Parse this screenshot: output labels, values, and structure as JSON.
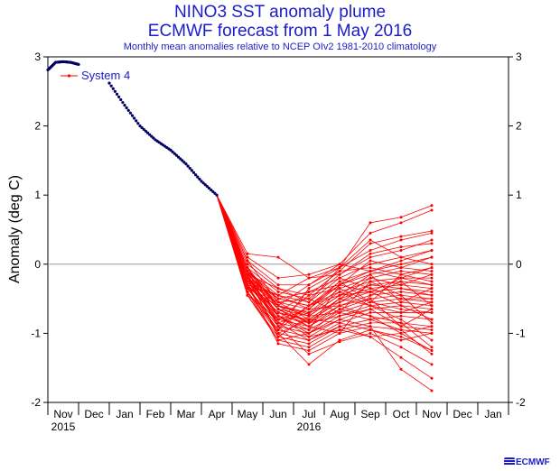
{
  "title": "NINO3 SST anomaly plume",
  "subtitle_line": "ECMWF forecast from 1 May 2016",
  "note": "Monthly mean anomalies relative to NCEP OIv2 1981-2010 climatology",
  "legend_label": "System 4",
  "logo_text": "ECMWF",
  "colors": {
    "title": "#1b1bcc",
    "observed": "#000066",
    "forecast": "#ff0000",
    "zero_line": "#999999"
  },
  "chart_data": {
    "type": "line",
    "title": "NINO3 SST anomaly plume",
    "ylabel": "Anomaly (deg C)",
    "ylim": [
      -2,
      3
    ],
    "yticks": [
      -2,
      -1,
      0,
      1,
      2,
      3
    ],
    "x_months": [
      "Nov",
      "Dec",
      "Jan",
      "Feb",
      "Mar",
      "Apr",
      "May",
      "Jun",
      "Jul",
      "Aug",
      "Sep",
      "Oct",
      "Nov",
      "Dec",
      "Jan"
    ],
    "x_years": [
      {
        "label": "2015",
        "month_index": 0
      },
      {
        "label": "2016",
        "month_index": 8
      }
    ],
    "grid": false,
    "legend_position": "top-left",
    "observed": {
      "x": [
        -0.5,
        -0.25,
        0,
        0.25,
        0.5,
        1.5,
        2,
        2.5,
        3,
        3.5,
        4,
        4.5,
        5
      ],
      "y": [
        2.81,
        2.92,
        2.93,
        2.92,
        2.89,
        2.62,
        2.3,
        2.0,
        1.8,
        1.65,
        1.45,
        1.2,
        1.0
      ]
    },
    "forecast": {
      "start": {
        "x": 5,
        "y": 1.0
      },
      "x": [
        6,
        7,
        8,
        9,
        10,
        11,
        12
      ],
      "members": [
        [
          0.15,
          0.1,
          -0.2,
          -0.05,
          0.6,
          0.68,
          0.85
        ],
        [
          0.1,
          -0.2,
          -0.15,
          0.0,
          0.45,
          0.6,
          0.78
        ],
        [
          0.05,
          -0.3,
          -0.3,
          -0.05,
          0.2,
          0.35,
          0.45
        ],
        [
          0.0,
          -0.35,
          -0.45,
          -0.1,
          0.3,
          0.4,
          0.48
        ],
        [
          -0.05,
          -0.4,
          -0.5,
          -0.15,
          0.1,
          0.2,
          0.35
        ],
        [
          -0.1,
          -0.45,
          -0.55,
          -0.2,
          0.0,
          0.1,
          0.2
        ],
        [
          -0.1,
          -0.5,
          -0.6,
          -0.25,
          -0.1,
          0.0,
          0.1
        ],
        [
          -0.15,
          -0.55,
          -0.65,
          -0.3,
          -0.15,
          -0.05,
          -0.1
        ],
        [
          -0.15,
          -0.6,
          -0.7,
          -0.35,
          -0.2,
          -0.1,
          -0.15
        ],
        [
          -0.2,
          -0.6,
          -0.72,
          -0.4,
          -0.25,
          -0.2,
          -0.2
        ],
        [
          -0.2,
          -0.65,
          -0.75,
          -0.45,
          -0.3,
          -0.25,
          -0.3
        ],
        [
          -0.25,
          -0.7,
          -0.8,
          -0.5,
          -0.35,
          -0.3,
          -0.35
        ],
        [
          -0.25,
          -0.7,
          -0.82,
          -0.55,
          -0.4,
          -0.35,
          -0.4
        ],
        [
          -0.3,
          -0.75,
          -0.85,
          -0.6,
          -0.45,
          -0.4,
          -0.45
        ],
        [
          -0.3,
          -0.8,
          -0.9,
          -0.65,
          -0.5,
          -0.45,
          -0.5
        ],
        [
          -0.35,
          -0.85,
          -0.95,
          -0.7,
          -0.55,
          -0.5,
          -0.55
        ],
        [
          -0.35,
          -0.9,
          -1.0,
          -0.75,
          -0.6,
          -0.55,
          -0.6
        ],
        [
          -0.4,
          -0.95,
          -1.05,
          -0.8,
          -0.65,
          -0.6,
          -0.65
        ],
        [
          -0.4,
          -1.0,
          -1.1,
          -0.85,
          -0.7,
          -0.7,
          -0.7
        ],
        [
          -0.45,
          -1.05,
          -1.15,
          -0.9,
          -0.8,
          -0.75,
          -0.8
        ],
        [
          -0.45,
          -1.1,
          -1.2,
          -0.95,
          -0.85,
          -0.85,
          -0.9
        ],
        [
          -0.3,
          -1.15,
          -1.25,
          -1.0,
          -0.9,
          -0.95,
          -1.0
        ],
        [
          -0.2,
          -1.0,
          -1.45,
          -1.1,
          -0.95,
          -1.05,
          -1.25
        ],
        [
          -0.15,
          -0.9,
          -1.3,
          -1.12,
          -1.0,
          -1.2,
          -1.45
        ],
        [
          -0.25,
          -0.85,
          -1.1,
          -0.9,
          -1.05,
          -1.35,
          -1.65
        ],
        [
          -0.1,
          -0.75,
          -1.0,
          -0.8,
          -0.9,
          -1.52,
          -1.83
        ],
        [
          -0.05,
          -0.65,
          -0.9,
          -0.6,
          -0.75,
          -1.0,
          -1.25
        ],
        [
          0.05,
          -0.55,
          -0.8,
          -0.5,
          -0.6,
          -0.8,
          -1.1
        ],
        [
          -0.2,
          -0.5,
          -0.6,
          -0.3,
          -0.4,
          -0.6,
          -0.8
        ],
        [
          -0.3,
          -0.7,
          -0.4,
          -0.2,
          -0.35,
          -0.5,
          -0.5
        ],
        [
          -0.35,
          -0.6,
          -0.3,
          0.0,
          -0.1,
          -0.2,
          -0.3
        ],
        [
          -0.4,
          -0.95,
          -0.35,
          -0.1,
          -0.05,
          -0.15,
          -0.05
        ],
        [
          -0.45,
          -0.8,
          -0.65,
          -0.6,
          -0.5,
          -0.9,
          -0.95
        ],
        [
          -0.15,
          -1.05,
          -0.75,
          -0.7,
          -0.8,
          -0.95,
          -1.3
        ],
        [
          -0.25,
          -0.45,
          -0.2,
          -0.15,
          0.15,
          0.25,
          0.3
        ],
        [
          -0.2,
          -0.65,
          -0.85,
          -0.5,
          -0.2,
          -0.3,
          -0.15
        ],
        [
          -0.1,
          -0.9,
          -0.6,
          -0.4,
          -0.6,
          -0.7,
          -0.55
        ],
        [
          -0.3,
          -1.0,
          -0.8,
          -0.85,
          -0.95,
          -1.1,
          -1.0
        ],
        [
          -0.05,
          -0.75,
          -0.95,
          -0.3,
          0.05,
          -0.05,
          0.1
        ],
        [
          -0.35,
          -0.55,
          -0.5,
          -0.7,
          -0.25,
          -0.45,
          -0.85
        ],
        [
          -0.15,
          -0.35,
          -0.55,
          -0.05,
          0.35,
          0.1,
          0.0
        ],
        [
          -0.2,
          -0.8,
          -0.45,
          -0.35,
          -0.55,
          -0.65,
          -0.7
        ],
        [
          -0.1,
          -0.6,
          -0.75,
          -0.45,
          -0.15,
          -0.55,
          -0.35
        ],
        [
          -0.4,
          -1.1,
          -1.0,
          -0.65,
          -0.75,
          -0.85,
          -1.2
        ],
        [
          -0.25,
          -0.7,
          -0.9,
          -1.0,
          -0.45,
          -0.25,
          -0.6
        ],
        [
          -0.3,
          -0.45,
          -0.65,
          -0.25,
          -0.55,
          -0.15,
          -0.25
        ],
        [
          -0.15,
          -0.85,
          -0.7,
          -0.55,
          -0.3,
          -0.35,
          -0.45
        ],
        [
          -0.05,
          -0.6,
          -0.85,
          -0.75,
          -0.65,
          -0.9,
          -0.65
        ],
        [
          -0.35,
          -0.95,
          -0.6,
          -0.45,
          -0.4,
          -0.2,
          -0.05
        ],
        [
          -0.2,
          -0.75,
          -1.05,
          -0.95,
          -1.05,
          -1.0,
          -0.9
        ],
        [
          -0.1,
          -0.5,
          -0.4,
          -0.3,
          -0.1,
          0.05,
          0.2
        ]
      ]
    }
  }
}
